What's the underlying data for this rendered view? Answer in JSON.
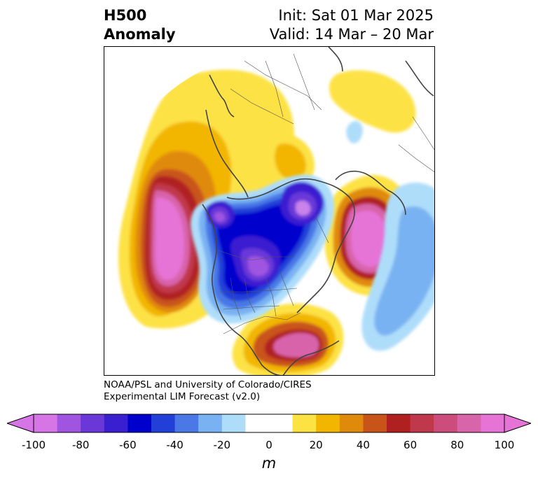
{
  "title": {
    "line1": "H500",
    "line2": "Anomaly"
  },
  "init": {
    "line1": "Init: Sat 01 Mar 2025",
    "line2": "Valid: 14 Mar – 20 Mar"
  },
  "credit": {
    "line1": "NOAA/PSL and University of Colorado/CIRES",
    "line2": "Experimental LIM Forecast (v2.0)"
  },
  "colorbar": {
    "unit": "m",
    "ticks": [
      "-100",
      "-80",
      "-60",
      "-40",
      "-20",
      "0",
      "20",
      "40",
      "60",
      "80",
      "100"
    ],
    "colors": [
      "#d675e6",
      "#9f55e0",
      "#6a38d8",
      "#3a1fd0",
      "#0000cc",
      "#2240d8",
      "#4a78e6",
      "#79b2f2",
      "#aeddfa",
      "#ffffff",
      "#ffffff",
      "#fde244",
      "#f2b600",
      "#e08a0c",
      "#c9541a",
      "#b02020",
      "#c0384c",
      "#cc4c7c",
      "#d864aa",
      "#e673d6"
    ],
    "under_color": "#d675e6",
    "over_color": "#e673d6"
  },
  "map": {
    "projection": "polar-stereographic",
    "features": [
      "coastlines",
      "country-borders",
      "state-borders"
    ],
    "anomalies": [
      {
        "region": "north-pacific",
        "sign": "positive",
        "peak": 100
      },
      {
        "region": "eastern-north-america",
        "sign": "negative",
        "peak": -90
      },
      {
        "region": "hudson-bay-canada",
        "sign": "negative",
        "peak": -80
      },
      {
        "region": "north-atlantic",
        "sign": "positive",
        "peak": 100
      },
      {
        "region": "southeast-united-states",
        "sign": "positive",
        "peak": 80
      },
      {
        "region": "central-atlantic",
        "sign": "negative",
        "peak": -30
      },
      {
        "region": "greenland-arctic",
        "sign": "positive",
        "peak": 30
      }
    ]
  }
}
